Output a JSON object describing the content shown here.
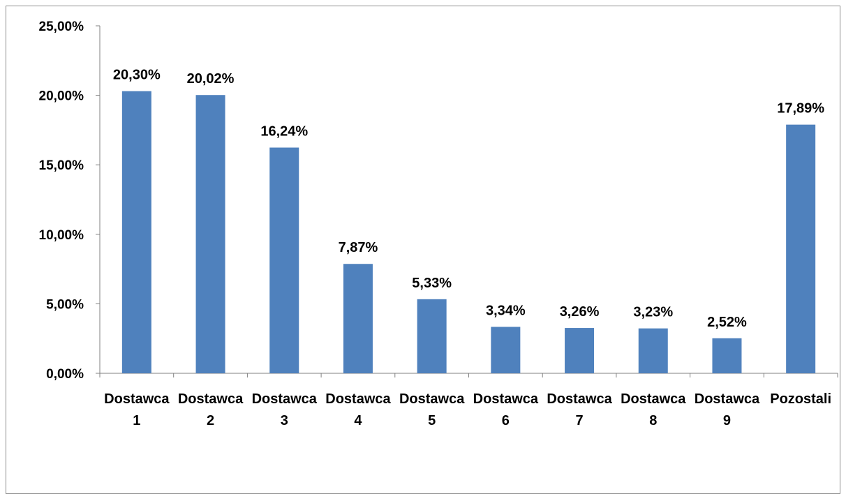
{
  "chart_data": {
    "type": "bar",
    "categories": [
      [
        "Dostawca",
        "1"
      ],
      [
        "Dostawca",
        "2"
      ],
      [
        "Dostawca",
        "3"
      ],
      [
        "Dostawca",
        "4"
      ],
      [
        "Dostawca",
        "5"
      ],
      [
        "Dostawca",
        "6"
      ],
      [
        "Dostawca",
        "7"
      ],
      [
        "Dostawca",
        "8"
      ],
      [
        "Dostawca",
        "9"
      ],
      [
        "Pozostali"
      ]
    ],
    "values": [
      20.3,
      20.02,
      16.24,
      7.87,
      5.33,
      3.34,
      3.26,
      3.23,
      2.52,
      17.89
    ],
    "data_labels": [
      "20,30%",
      "20,02%",
      "16,24%",
      "7,87%",
      "5,33%",
      "3,34%",
      "3,26%",
      "3,23%",
      "2,52%",
      "17,89%"
    ],
    "y_ticks": [
      0,
      5,
      10,
      15,
      20,
      25
    ],
    "y_tick_labels": [
      "0,00%",
      "5,00%",
      "10,00%",
      "15,00%",
      "20,00%",
      "25,00%"
    ],
    "ylim": [
      0,
      25
    ],
    "grid": false,
    "legend": "none",
    "bar_color": "#4F81BD",
    "axis_color": "#808080"
  }
}
